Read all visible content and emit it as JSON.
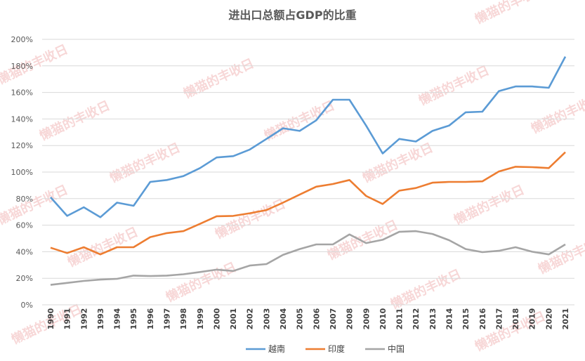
{
  "chart_data": {
    "type": "line",
    "title": "进出口总额占GDP的比重",
    "x": [
      1990,
      1991,
      1992,
      1993,
      1994,
      1995,
      1996,
      1997,
      1998,
      1999,
      2000,
      2001,
      2002,
      2003,
      2004,
      2005,
      2006,
      2007,
      2008,
      2009,
      2010,
      2011,
      2012,
      2013,
      2014,
      2015,
      2016,
      2017,
      2018,
      2019,
      2020,
      2021
    ],
    "ylim": [
      0,
      200
    ],
    "yticks": [
      "0%",
      "20%",
      "40%",
      "60%",
      "80%",
      "100%",
      "120%",
      "140%",
      "160%",
      "180%",
      "200%"
    ],
    "grid": true,
    "legend": "bottom",
    "series": [
      {
        "name": "越南",
        "color": "#5b9bd5",
        "values": [
          81,
          67,
          73.5,
          66,
          77,
          74.6,
          92.6,
          94,
          97,
          103,
          111,
          112,
          117,
          125,
          133,
          131,
          139,
          154.5,
          154.5,
          135,
          114,
          125,
          123,
          131,
          135,
          145,
          145.5,
          161,
          164.5,
          164.5,
          163.5,
          187
        ]
      },
      {
        "name": "印度",
        "color": "#ed7d31",
        "values": [
          43,
          39,
          43.4,
          38,
          43.4,
          43.4,
          51,
          54,
          55.5,
          61,
          66.7,
          67,
          69,
          71.4,
          77,
          83,
          89,
          91,
          94,
          82,
          76,
          86,
          88,
          92,
          92.6,
          92.6,
          93,
          100.5,
          104,
          103.7,
          103,
          115
        ]
      },
      {
        "name": "中国",
        "color": "#a5a5a5",
        "values": [
          15,
          16.5,
          18,
          19,
          19.6,
          22,
          21.7,
          22,
          23,
          24.7,
          26.5,
          25.5,
          29.6,
          30.7,
          37.6,
          42,
          45.5,
          45.5,
          53,
          46.5,
          49,
          55,
          55.5,
          53.4,
          48.7,
          42,
          39.7,
          40.7,
          43.4,
          40,
          38,
          45.5
        ]
      }
    ]
  },
  "watermark": "懒猫的丰收日"
}
